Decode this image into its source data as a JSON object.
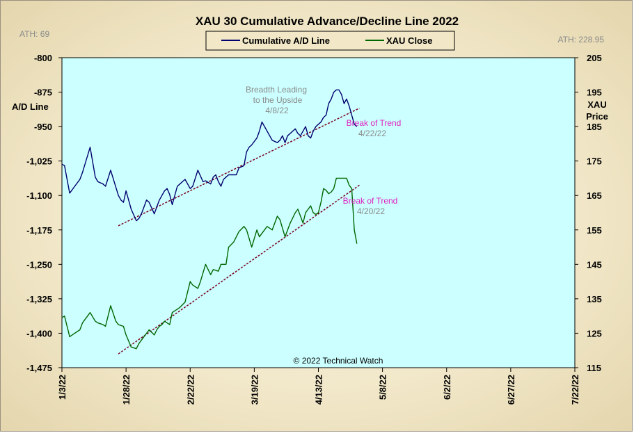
{
  "chart_data": {
    "type": "line",
    "title": "XAU 30 Cumulative Advance/Decline Line 2022",
    "ath_left": "ATH: 69",
    "ath_right": "ATH: 228.95",
    "y_left_label_1": "A/D Line",
    "y_right_label_1": "XAU",
    "y_right_label_2": "Price",
    "copyright": "© 2022 Technical Watch",
    "x_ticks": [
      "1/3/22",
      "1/28/22",
      "2/22/22",
      "3/19/22",
      "4/13/22",
      "5/8/22",
      "6/2/22",
      "6/27/22",
      "7/22/22"
    ],
    "y_left_ticks": [
      "-800",
      "-875",
      "-950",
      "-1,025",
      "-1,100",
      "-1,175",
      "-1,250",
      "-1,325",
      "-1,400",
      "-1,475"
    ],
    "y_right_ticks": [
      "205",
      "195",
      "185",
      "175",
      "165",
      "155",
      "145",
      "135",
      "125",
      "115"
    ],
    "ylim_left": [
      -1475,
      -800
    ],
    "ylim_right": [
      115,
      205
    ],
    "grid": false,
    "legend_position": "top-center",
    "colors": {
      "ad_line": "#00006e",
      "xau_close": "#006600",
      "trend": "#7a0020",
      "plot_bg": "#ccffff",
      "magenta": "#e020c0",
      "annotation_gray": "#808080"
    },
    "annotations": {
      "breadth_l1": "Breadth Leading",
      "breadth_l2": "to the Upside",
      "breadth_date": "4/8/22",
      "break1_label": "Break of Trend",
      "break1_date": "4/22/22",
      "break2_label": "Break of Trend",
      "break2_date": "4/20/22"
    },
    "series": [
      {
        "name": "Cumulative A/D Line",
        "axis": "left",
        "x": [
          0,
          1,
          3,
          5,
          7,
          8,
          11,
          13,
          14,
          16,
          17,
          19,
          22,
          23,
          24,
          25,
          27,
          29,
          30,
          31,
          33,
          34,
          36,
          37,
          38,
          39,
          40,
          41,
          42,
          43,
          45,
          46,
          47,
          48,
          50,
          51,
          53,
          55,
          56,
          58,
          59,
          60,
          61,
          62,
          63,
          64,
          65,
          67,
          68,
          69,
          71,
          72,
          73,
          74,
          76,
          77,
          78,
          80,
          81,
          82,
          84,
          85,
          86,
          87,
          88,
          89,
          91,
          92,
          93,
          94,
          95,
          96,
          97,
          98,
          99,
          100,
          101,
          102,
          103,
          104,
          105,
          106,
          107,
          108,
          109
        ],
        "y": [
          -1032,
          -1035,
          -1095,
          -1080,
          -1065,
          -1050,
          -995,
          -1060,
          -1070,
          -1075,
          -1080,
          -1045,
          -1100,
          -1110,
          -1115,
          -1090,
          -1130,
          -1155,
          -1150,
          -1140,
          -1110,
          -1115,
          -1140,
          -1125,
          -1110,
          -1100,
          -1090,
          -1085,
          -1098,
          -1120,
          -1080,
          -1075,
          -1070,
          -1065,
          -1085,
          -1080,
          -1045,
          -1070,
          -1068,
          -1075,
          -1060,
          -1055,
          -1070,
          -1080,
          -1065,
          -1060,
          -1055,
          -1055,
          -1055,
          -1040,
          -1035,
          -1005,
          -995,
          -990,
          -975,
          -960,
          -940,
          -960,
          -970,
          -980,
          -985,
          -980,
          -970,
          -985,
          -970,
          -965,
          -955,
          -965,
          -970,
          -960,
          -950,
          -970,
          -975,
          -960,
          -950,
          -945,
          -940,
          -930,
          -925,
          -900,
          -890,
          -875,
          -870,
          -870,
          -880
        ],
        "x2": [
          110,
          111,
          112,
          113,
          114,
          115
        ],
        "y2": [
          -900,
          -890,
          -905,
          -925,
          -945,
          -950
        ]
      },
      {
        "name": "XAU Close",
        "axis": "right",
        "x": [
          0,
          1,
          3,
          5,
          7,
          8,
          11,
          13,
          14,
          16,
          17,
          19,
          21,
          22,
          24,
          25,
          27,
          29,
          30,
          32,
          34,
          36,
          37,
          38,
          39,
          40,
          42,
          43,
          45,
          46,
          48,
          50,
          51,
          53,
          54,
          56,
          58,
          59,
          61,
          62,
          64,
          65,
          67,
          68,
          69,
          71,
          72,
          74,
          76,
          77,
          79,
          80,
          82,
          84,
          85,
          87,
          88,
          89,
          91,
          92,
          94,
          95,
          96,
          97,
          98,
          99,
          100,
          101,
          102,
          103,
          104,
          105,
          106,
          107,
          108,
          109,
          110,
          111,
          112,
          113,
          114,
          115
        ],
        "y": [
          129.5,
          130,
          124,
          125,
          126,
          128,
          131,
          128.5,
          128,
          127.5,
          127,
          133,
          128.5,
          127.5,
          127,
          124.5,
          121,
          120.5,
          122,
          124,
          126,
          124.5,
          126,
          127,
          127.5,
          128.5,
          127.5,
          131,
          132,
          132.5,
          134,
          140,
          139,
          138,
          140,
          145,
          142,
          143.5,
          143,
          145,
          145,
          150,
          151.5,
          153,
          154.5,
          156,
          155,
          150,
          155,
          153,
          155,
          156,
          155,
          159,
          158,
          153,
          155,
          157,
          160,
          161,
          157,
          160,
          161,
          162,
          160,
          159.5,
          160,
          163,
          167,
          166.5,
          165.5,
          166,
          167,
          170,
          170,
          170,
          170,
          170,
          168,
          167,
          155,
          151
        ]
      }
    ],
    "trendlines": [
      {
        "name": "A/D trend",
        "axis": "left",
        "x": [
          22,
          116
        ],
        "y": [
          -1166,
          -910
        ]
      },
      {
        "name": "XAU trend",
        "axis": "right",
        "x": [
          22,
          116
        ],
        "y": [
          119,
          168
        ]
      }
    ],
    "x_range": [
      0,
      200
    ],
    "x_tick_positions": [
      0,
      25,
      50,
      75,
      100,
      125,
      150,
      175,
      200
    ]
  },
  "legend": {
    "ad_label": "Cumulative A/D Line",
    "xau_label": "XAU Close"
  }
}
